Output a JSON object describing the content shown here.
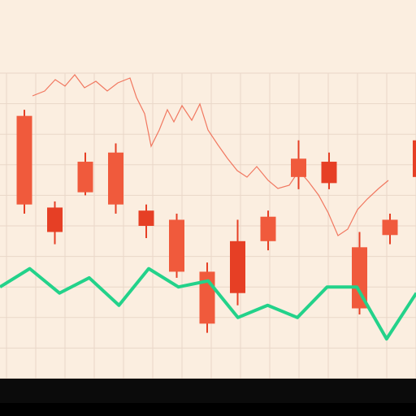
{
  "colors": {
    "candle": "#f05a3c",
    "candle_dark": "#e63f25",
    "green_line": "#23d28a",
    "noise": "#ef5a40",
    "grid": "#e9d7c8",
    "background": "#fbeee0"
  },
  "title": {
    "line1": "",
    "line2": "",
    "line3": ""
  },
  "x_ticks": [],
  "chart_data": {
    "type": "candlestick",
    "title": "",
    "xlabel": "",
    "ylabel": "",
    "ylim": [
      0,
      100
    ],
    "grid": true,
    "candles": [
      {
        "x": 1,
        "open": 86,
        "close": 57,
        "high": 88,
        "low": 54
      },
      {
        "x": 2,
        "open": 56,
        "close": 48,
        "high": 58,
        "low": 44
      },
      {
        "x": 3,
        "open": 71,
        "close": 61,
        "high": 74,
        "low": 60
      },
      {
        "x": 4,
        "open": 74,
        "close": 57,
        "high": 77,
        "low": 54
      },
      {
        "x": 5,
        "open": 55,
        "close": 50,
        "high": 57,
        "low": 46
      },
      {
        "x": 6,
        "open": 52,
        "close": 35,
        "high": 54,
        "low": 33
      },
      {
        "x": 7,
        "open": 35,
        "close": 18,
        "high": 38,
        "low": 15
      },
      {
        "x": 8,
        "open": 45,
        "close": 28,
        "high": 52,
        "low": 24
      },
      {
        "x": 9,
        "open": 53,
        "close": 45,
        "high": 55,
        "low": 42
      },
      {
        "x": 10,
        "open": 72,
        "close": 66,
        "high": 78,
        "low": 62
      },
      {
        "x": 11,
        "open": 71,
        "close": 64,
        "high": 74,
        "low": 62
      },
      {
        "x": 12,
        "open": 43,
        "close": 23,
        "high": 48,
        "low": 21
      },
      {
        "x": 13,
        "open": 52,
        "close": 47,
        "high": 54,
        "low": 44
      },
      {
        "x": 14,
        "open": 78,
        "close": 66,
        "high": 82,
        "low": 62
      }
    ],
    "series": [
      {
        "x": [
          0,
          1,
          2,
          3,
          4,
          5,
          6,
          7,
          8,
          9,
          10,
          11,
          12,
          13,
          14
        ],
        "values": [
          30,
          36,
          28,
          33,
          24,
          36,
          30,
          32,
          20,
          24,
          20,
          30,
          30,
          13,
          28
        ]
      }
    ]
  }
}
